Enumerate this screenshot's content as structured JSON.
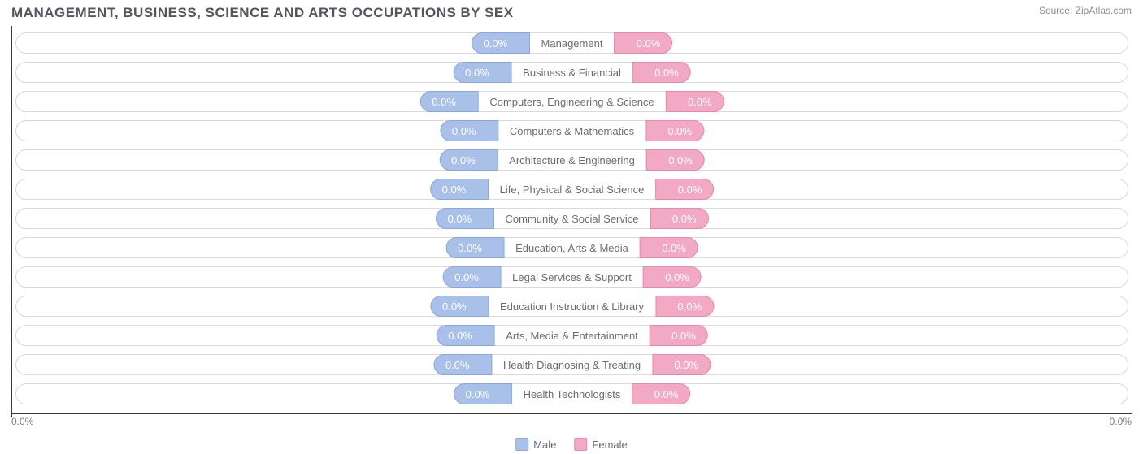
{
  "header": {
    "title": "MANAGEMENT, BUSINESS, SCIENCE AND ARTS OCCUPATIONS BY SEX",
    "source_label": "Source:",
    "source_site": "ZipAtlas.com"
  },
  "chart": {
    "type": "diverging-bar",
    "background_color": "#ffffff",
    "track_border_color": "#d9d9de",
    "axis_color": "#3a3a3a",
    "label_color": "#6b6b76",
    "male_color": "#a9c1e8",
    "male_border": "#87a8db",
    "female_color": "#f2a9c4",
    "female_border": "#eb86ac",
    "x_axis": {
      "left_label": "0.0%",
      "right_label": "0.0%"
    },
    "legend": {
      "male_label": "Male",
      "female_label": "Female"
    },
    "categories": [
      {
        "label": "Management",
        "male_pct": "0.0%",
        "female_pct": "0.0%",
        "male_val": 0,
        "female_val": 0
      },
      {
        "label": "Business & Financial",
        "male_pct": "0.0%",
        "female_pct": "0.0%",
        "male_val": 0,
        "female_val": 0
      },
      {
        "label": "Computers, Engineering & Science",
        "male_pct": "0.0%",
        "female_pct": "0.0%",
        "male_val": 0,
        "female_val": 0
      },
      {
        "label": "Computers & Mathematics",
        "male_pct": "0.0%",
        "female_pct": "0.0%",
        "male_val": 0,
        "female_val": 0
      },
      {
        "label": "Architecture & Engineering",
        "male_pct": "0.0%",
        "female_pct": "0.0%",
        "male_val": 0,
        "female_val": 0
      },
      {
        "label": "Life, Physical & Social Science",
        "male_pct": "0.0%",
        "female_pct": "0.0%",
        "male_val": 0,
        "female_val": 0
      },
      {
        "label": "Community & Social Service",
        "male_pct": "0.0%",
        "female_pct": "0.0%",
        "male_val": 0,
        "female_val": 0
      },
      {
        "label": "Education, Arts & Media",
        "male_pct": "0.0%",
        "female_pct": "0.0%",
        "male_val": 0,
        "female_val": 0
      },
      {
        "label": "Legal Services & Support",
        "male_pct": "0.0%",
        "female_pct": "0.0%",
        "male_val": 0,
        "female_val": 0
      },
      {
        "label": "Education Instruction & Library",
        "male_pct": "0.0%",
        "female_pct": "0.0%",
        "male_val": 0,
        "female_val": 0
      },
      {
        "label": "Arts, Media & Entertainment",
        "male_pct": "0.0%",
        "female_pct": "0.0%",
        "male_val": 0,
        "female_val": 0
      },
      {
        "label": "Health Diagnosing & Treating",
        "male_pct": "0.0%",
        "female_pct": "0.0%",
        "male_val": 0,
        "female_val": 0
      },
      {
        "label": "Health Technologists",
        "male_pct": "0.0%",
        "female_pct": "0.0%",
        "male_val": 0,
        "female_val": 0
      }
    ]
  }
}
